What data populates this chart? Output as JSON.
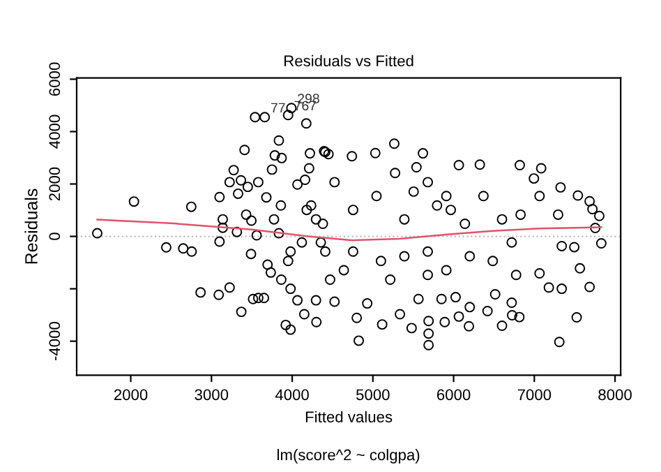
{
  "chart_data": {
    "type": "scatter",
    "title": "Residuals vs Fitted",
    "subtitle": "lm(score^2 ~ colgpa)",
    "xlabel": "Fitted values",
    "ylabel": "Residuals",
    "xlim": [
      1330,
      8070
    ],
    "ylim": [
      -5300,
      6050
    ],
    "xticks": [
      2000,
      3000,
      4000,
      5000,
      6000,
      7000,
      8000
    ],
    "yticks": [
      -4000,
      {
        "value": -2000,
        "label": null
      },
      0,
      2000,
      4000,
      6000
    ],
    "grid": false,
    "marker": "circle",
    "series": [
      {
        "color": "#000000",
        "x": [
          1585,
          2040,
          2750,
          2440,
          2650,
          2755,
          2865,
          3100,
          3140,
          3140,
          3100,
          3090,
          3225,
          3315,
          3370,
          3225,
          3275,
          3330,
          3365,
          3410,
          3450,
          3430,
          3495,
          3490,
          3515,
          3540,
          3580,
          3560,
          3580,
          3650,
          3660,
          3680,
          3695,
          3735,
          3750,
          3785,
          3835,
          3870,
          3860,
          3865,
          3920,
          3980,
          3950,
          3990,
          4175,
          4065,
          3980,
          3980,
          4160,
          4220,
          4210,
          4295,
          4300,
          4410,
          4450,
          4065,
          4150,
          4380,
          4410,
          5265,
          5030,
          4825,
          4800,
          5115,
          5480,
          5690,
          5690,
          5690,
          5890,
          6065,
          6190,
          6420,
          6600,
          6725,
          6815,
          7310,
          7525,
          7685,
          7565,
          7830,
          7805,
          7755,
          7720,
          7685,
          7540,
          7325,
          7085,
          6820,
          6995,
          6325,
          6065,
          5620,
          5540,
          4740,
          4395,
          7340,
          7495,
          7180,
          7340,
          7065,
          6775,
          6720,
          6515,
          6200,
          6025,
          5850,
          5565,
          5335,
          4930,
          4525,
          4525,
          4755,
          5045,
          5390,
          5680,
          5910,
          5965,
          6140,
          6370,
          6600,
          6830,
          7065,
          7295,
          4755,
          5100,
          5390,
          5680,
          5910,
          6200,
          6485,
          6720,
          4640,
          5215,
          5680,
          4355,
          4470,
          4180,
          5275,
          5795,
          5505,
          4295,
          3775,
          3950,
          4120,
          4235,
          3835
        ],
        "values": [
          120,
          1330,
          1130,
          -420,
          -460,
          -580,
          -2140,
          1500,
          650,
          330,
          -200,
          -2230,
          -1950,
          170,
          -2880,
          2070,
          2530,
          1630,
          2140,
          3300,
          1890,
          830,
          600,
          -670,
          -2390,
          4550,
          2070,
          40,
          -2350,
          -2350,
          4550,
          1490,
          -1080,
          -1380,
          2550,
          3090,
          3660,
          2990,
          1180,
          -1650,
          -3380,
          -3560,
          4630,
          4900,
          4310,
          1980,
          -580,
          -2000,
          2160,
          3170,
          2600,
          -2440,
          -3270,
          3220,
          3140,
          -2440,
          -2970,
          480,
          -580,
          3540,
          3180,
          -3980,
          -3110,
          -3360,
          -3500,
          -4150,
          -3710,
          -3230,
          -3270,
          -3060,
          -3430,
          -2850,
          -3410,
          -3010,
          -3080,
          -4030,
          -3090,
          -1930,
          -1220,
          -265,
          780,
          320,
          1040,
          1340,
          1560,
          1870,
          2600,
          2720,
          2210,
          2740,
          2720,
          3170,
          2640,
          3060,
          3250,
          -370,
          -410,
          -1950,
          -2000,
          -1410,
          -1470,
          -2530,
          -2210,
          -2700,
          -2320,
          -2390,
          -2390,
          -2970,
          -2560,
          -2490,
          2070,
          1010,
          1540,
          650,
          2070,
          1540,
          1010,
          480,
          1540,
          650,
          830,
          1540,
          830,
          -580,
          -940,
          -760,
          -580,
          -1290,
          -760,
          -940,
          -230,
          -1290,
          -1650,
          -1470,
          -230,
          -1650,
          1010,
          2420,
          1180,
          1710,
          650,
          650,
          -940,
          -230,
          1180,
          120
        ]
      },
      {
        "type": "line",
        "color": "#df536b",
        "marker": "none",
        "line_style": "solid",
        "x": [
          1585,
          2500,
          3500,
          4200,
          4750,
          5330,
          5900,
          6480,
          7060,
          7830
        ],
        "values": [
          640,
          500,
          260,
          0,
          -150,
          -90,
          70,
          210,
          300,
          350
        ]
      }
    ],
    "ref_lines": [
      {
        "axis": "y",
        "value": 0,
        "color": "#bebebe",
        "line_style": "dotted"
      }
    ],
    "annotations": [
      {
        "text": "298",
        "x": 3990,
        "y": 4900
      },
      {
        "text": "77",
        "x": 3660,
        "y": 4550
      },
      {
        "text": "767",
        "x": 3950,
        "y": 4630
      }
    ]
  }
}
